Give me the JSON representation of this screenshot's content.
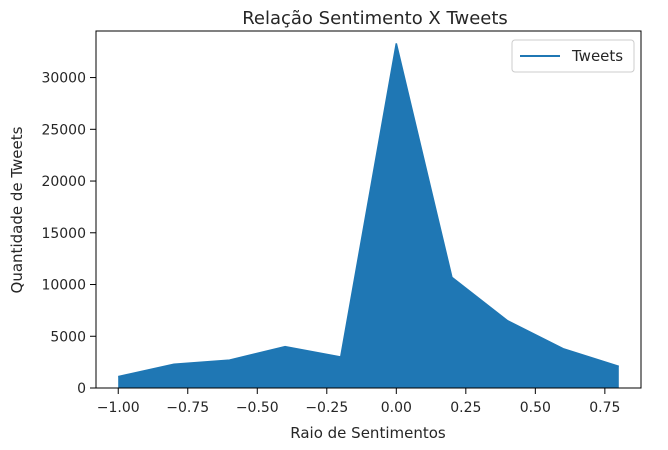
{
  "chart_data": {
    "type": "area",
    "title": "Relação Sentimento X Tweets",
    "xlabel": "Raio de Sentimentos",
    "ylabel": "Quantidade de Tweets",
    "xlim": [
      -1.08,
      0.88
    ],
    "ylim": [
      0,
      34500
    ],
    "x_ticks": [
      -1.0,
      -0.75,
      -0.5,
      -0.25,
      0.0,
      0.25,
      0.5,
      0.75
    ],
    "x_tick_labels": [
      "−1.00",
      "−0.75",
      "−0.50",
      "−0.25",
      "0.00",
      "0.25",
      "0.50",
      "0.75"
    ],
    "y_ticks": [
      0,
      5000,
      10000,
      15000,
      20000,
      25000,
      30000
    ],
    "y_tick_labels": [
      "0",
      "5000",
      "10000",
      "15000",
      "20000",
      "25000",
      "30000"
    ],
    "grid": false,
    "legend_position": "top-right",
    "color": "#1f77b4",
    "series": [
      {
        "name": "Tweets",
        "x": [
          -1.0,
          -0.8,
          -0.6,
          -0.4,
          -0.2,
          0.0,
          0.2,
          0.4,
          0.6,
          0.8
        ],
        "values": [
          1100,
          2300,
          2700,
          4000,
          3000,
          33300,
          10700,
          6500,
          3800,
          2100
        ]
      }
    ]
  }
}
